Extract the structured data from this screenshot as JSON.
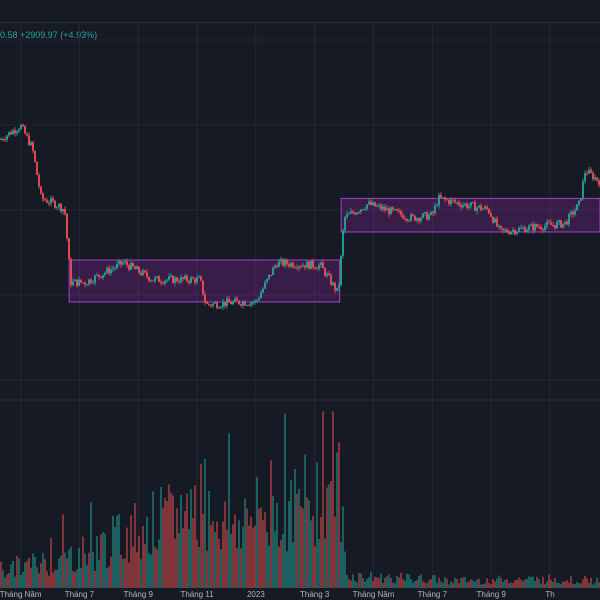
{
  "header": {
    "price_change_text": "0.58  +2909.97 (+4.93%)"
  },
  "colors": {
    "background": "#161a25",
    "grid": "#232733",
    "up": "#26a69a",
    "down": "#ef5350",
    "box_fill": "#9c27b0",
    "box_stroke": "#a642c4",
    "text": "#b2b5be"
  },
  "chart_data": {
    "type": "candlestick",
    "x_labels": [
      "Tháng Năm",
      "Tháng 7",
      "Tháng 9",
      "Tháng 11",
      "2023",
      "Tháng 3",
      "Tháng Năm",
      "Tháng 7",
      "Tháng 9",
      "Th"
    ],
    "x_label_period": [
      0,
      2,
      4,
      6,
      8,
      10,
      12,
      14,
      16,
      18
    ],
    "period_range": [
      -0.7,
      19.7
    ],
    "consolidation_boxes": [
      {
        "start_period": 1.65,
        "end_period": 10.85,
        "top_frac": 0.5,
        "bottom_frac": 0.35
      },
      {
        "start_period": 10.9,
        "end_period": 19.7,
        "top_frac": 0.72,
        "bottom_frac": 0.6
      }
    ],
    "price_path_frac": [
      [
        -0.7,
        0.93
      ],
      [
        0.0,
        0.98
      ],
      [
        0.4,
        0.9
      ],
      [
        0.7,
        0.72
      ],
      [
        1.2,
        0.7
      ],
      [
        1.5,
        0.68
      ],
      [
        1.7,
        0.42
      ],
      [
        2.2,
        0.42
      ],
      [
        3.5,
        0.49
      ],
      [
        4.5,
        0.43
      ],
      [
        6.1,
        0.43
      ],
      [
        6.3,
        0.34
      ],
      [
        7.4,
        0.35
      ],
      [
        8.0,
        0.35
      ],
      [
        8.7,
        0.49
      ],
      [
        10.2,
        0.48
      ],
      [
        10.8,
        0.38
      ],
      [
        11.0,
        0.65
      ],
      [
        11.8,
        0.7
      ],
      [
        13.3,
        0.65
      ],
      [
        14.0,
        0.66
      ],
      [
        14.2,
        0.72
      ],
      [
        15.0,
        0.7
      ],
      [
        15.9,
        0.68
      ],
      [
        16.3,
        0.6
      ],
      [
        17.6,
        0.62
      ],
      [
        18.5,
        0.63
      ],
      [
        19.0,
        0.7
      ],
      [
        19.2,
        0.82
      ],
      [
        19.7,
        0.78
      ]
    ],
    "volume_profile_frac": [
      [
        -0.7,
        0.12
      ],
      [
        1.0,
        0.18
      ],
      [
        2.5,
        0.25
      ],
      [
        4.0,
        0.4
      ],
      [
        5.0,
        0.45
      ],
      [
        6.2,
        0.6
      ],
      [
        7.0,
        0.42
      ],
      [
        8.4,
        0.5
      ],
      [
        9.5,
        0.55
      ],
      [
        10.8,
        0.75
      ],
      [
        11.1,
        0.08
      ],
      [
        15.0,
        0.05
      ],
      [
        18.0,
        0.06
      ],
      [
        19.7,
        0.05
      ]
    ]
  }
}
